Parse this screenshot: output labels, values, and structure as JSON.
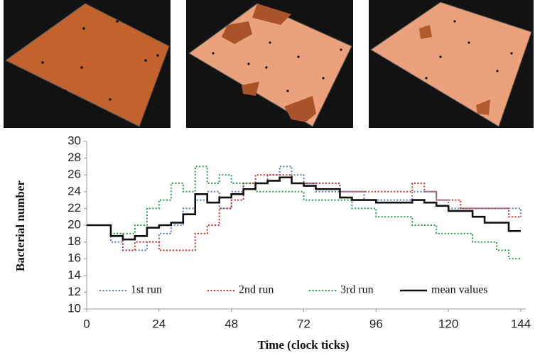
{
  "chart_data": {
    "type": "line",
    "x_label": "Time (clock ticks)",
    "y_label": "Bacterial number",
    "xlim": [
      0,
      144
    ],
    "ylim": [
      10,
      30
    ],
    "xticks": [
      0,
      24,
      48,
      72,
      96,
      120,
      144
    ],
    "yticks": [
      10,
      12,
      14,
      16,
      18,
      20,
      22,
      24,
      26,
      28,
      30
    ],
    "step": true,
    "x": [
      0,
      4,
      8,
      12,
      16,
      20,
      24,
      28,
      32,
      36,
      40,
      44,
      48,
      52,
      56,
      60,
      64,
      68,
      72,
      76,
      80,
      84,
      88,
      92,
      96,
      100,
      104,
      108,
      112,
      116,
      120,
      124,
      128,
      132,
      136,
      140,
      144
    ],
    "series": [
      {
        "name": "1st run",
        "color": "#5b78b8",
        "style": "dotted",
        "values": [
          20,
          20,
          18,
          17,
          17,
          18,
          19,
          20,
          22,
          23,
          24,
          22,
          24,
          25,
          25,
          26,
          27,
          26,
          25,
          24,
          24,
          24,
          24,
          23,
          23,
          23,
          23,
          24,
          24,
          23,
          22,
          22,
          22,
          22,
          22,
          22,
          21
        ]
      },
      {
        "name": "2nd run",
        "color": "#c8332c",
        "style": "dotted",
        "values": [
          20,
          20,
          19,
          17,
          18,
          18,
          17,
          17,
          17,
          19,
          20,
          22,
          23,
          25,
          26,
          26,
          26,
          25,
          25,
          25,
          25,
          24,
          24,
          24,
          24,
          24,
          24,
          25,
          24,
          23,
          23,
          22,
          22,
          22,
          22,
          21,
          21
        ]
      },
      {
        "name": "3rd run",
        "color": "#2f9a4c",
        "style": "dotted",
        "values": [
          20,
          20,
          19,
          19,
          20,
          22,
          23,
          25,
          24,
          27,
          25,
          26,
          25,
          25,
          24,
          24,
          24,
          24,
          23,
          23,
          23,
          23,
          22,
          22,
          21,
          21,
          21,
          20,
          20,
          19,
          19,
          19,
          18,
          18,
          17,
          16,
          16
        ]
      },
      {
        "name": "mean values",
        "color": "#111111",
        "style": "solid",
        "values": [
          20,
          20,
          18.7,
          18.3,
          18.7,
          19.7,
          20,
          20.3,
          21.3,
          23.7,
          22.7,
          23.3,
          23.7,
          24.3,
          25,
          25.3,
          25.7,
          25,
          24.7,
          24.3,
          24.3,
          23.3,
          23,
          23,
          22.7,
          22.7,
          22.7,
          23,
          22.7,
          22.3,
          21.7,
          21.7,
          21,
          20.3,
          20.3,
          19.3,
          19.3
        ]
      }
    ]
  }
}
